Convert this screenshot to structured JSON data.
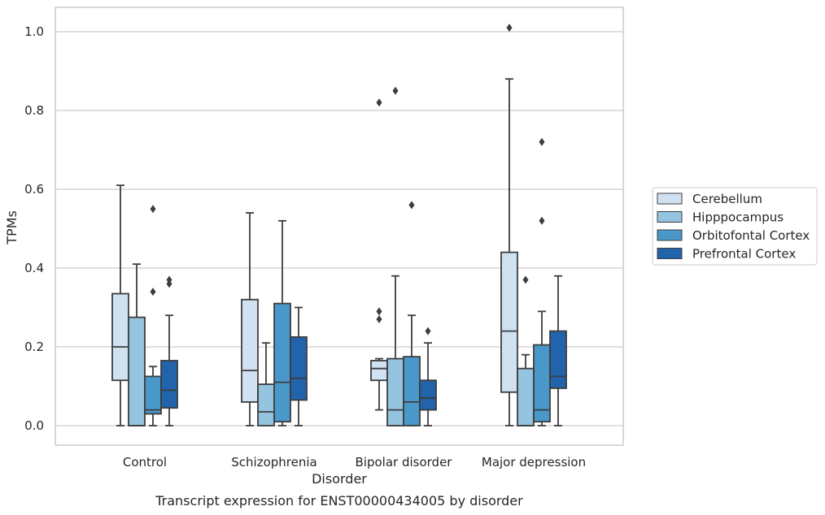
{
  "chart_data": {
    "type": "box",
    "xlabel": "Disorder",
    "ylabel": "TPMs",
    "caption": "Transcript expression for ENST00000434005 by disorder",
    "ylim": [
      -0.05,
      1.06
    ],
    "yticks": [
      0.0,
      0.2,
      0.4,
      0.6,
      0.8,
      1.0
    ],
    "ytick_labels": [
      "0.0",
      "0.2",
      "0.4",
      "0.6",
      "0.8",
      "1.0"
    ],
    "grid": true,
    "legend_position": "right",
    "categories": [
      "Control",
      "Schizophrenia",
      "Bipolar disorder",
      "Major depression"
    ],
    "series": [
      {
        "name": "Cerebellum",
        "color": "#d0e1f2",
        "boxes": [
          {
            "whislo": 0.0,
            "q1": 0.115,
            "med": 0.2,
            "q3": 0.335,
            "whishi": 0.61,
            "fliers": []
          },
          {
            "whislo": 0.0,
            "q1": 0.06,
            "med": 0.14,
            "q3": 0.32,
            "whishi": 0.54,
            "fliers": []
          },
          {
            "whislo": 0.04,
            "q1": 0.115,
            "med": 0.145,
            "q3": 0.165,
            "whishi": 0.17,
            "fliers": [
              0.27,
              0.29,
              0.82
            ]
          },
          {
            "whislo": 0.0,
            "q1": 0.085,
            "med": 0.24,
            "q3": 0.44,
            "whishi": 0.88,
            "fliers": [
              1.01
            ]
          }
        ]
      },
      {
        "name": "Hipppocampus",
        "color": "#94c4df",
        "boxes": [
          {
            "whislo": 0.0,
            "q1": 0.0,
            "med": 0.0,
            "q3": 0.275,
            "whishi": 0.41,
            "fliers": []
          },
          {
            "whislo": 0.0,
            "q1": 0.0,
            "med": 0.035,
            "q3": 0.105,
            "whishi": 0.21,
            "fliers": []
          },
          {
            "whislo": 0.0,
            "q1": 0.0,
            "med": 0.04,
            "q3": 0.17,
            "whishi": 0.38,
            "fliers": [
              0.85
            ]
          },
          {
            "whislo": 0.0,
            "q1": 0.0,
            "med": 0.0,
            "q3": 0.145,
            "whishi": 0.18,
            "fliers": [
              0.37
            ]
          }
        ]
      },
      {
        "name": "Orbitofontal Cortex",
        "color": "#4a98c9",
        "boxes": [
          {
            "whislo": 0.0,
            "q1": 0.03,
            "med": 0.04,
            "q3": 0.125,
            "whishi": 0.15,
            "fliers": [
              0.34,
              0.55
            ]
          },
          {
            "whislo": 0.0,
            "q1": 0.01,
            "med": 0.11,
            "q3": 0.31,
            "whishi": 0.52,
            "fliers": []
          },
          {
            "whislo": 0.0,
            "q1": 0.0,
            "med": 0.06,
            "q3": 0.175,
            "whishi": 0.28,
            "fliers": [
              0.56
            ]
          },
          {
            "whislo": 0.0,
            "q1": 0.01,
            "med": 0.04,
            "q3": 0.205,
            "whishi": 0.29,
            "fliers": [
              0.52,
              0.72
            ]
          }
        ]
      },
      {
        "name": "Prefrontal Cortex",
        "color": "#2164ab",
        "boxes": [
          {
            "whislo": 0.0,
            "q1": 0.045,
            "med": 0.09,
            "q3": 0.165,
            "whishi": 0.28,
            "fliers": [
              0.36,
              0.37
            ]
          },
          {
            "whislo": 0.0,
            "q1": 0.065,
            "med": 0.12,
            "q3": 0.225,
            "whishi": 0.3,
            "fliers": []
          },
          {
            "whislo": 0.0,
            "q1": 0.04,
            "med": 0.07,
            "q3": 0.115,
            "whishi": 0.21,
            "fliers": [
              0.24
            ]
          },
          {
            "whislo": 0.0,
            "q1": 0.095,
            "med": 0.125,
            "q3": 0.24,
            "whishi": 0.38,
            "fliers": []
          }
        ]
      }
    ]
  }
}
